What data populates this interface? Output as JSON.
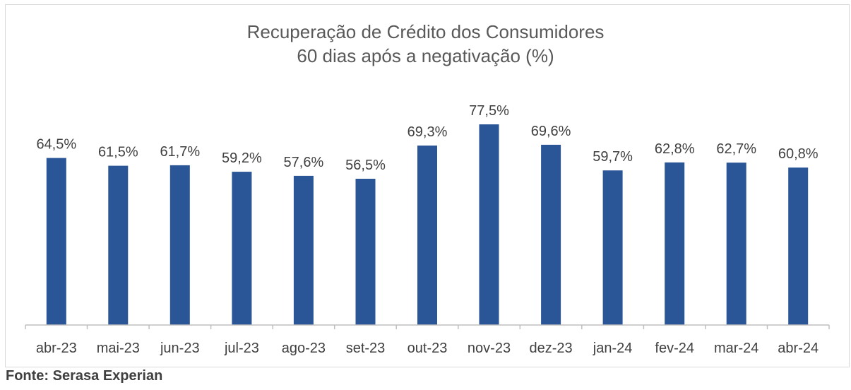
{
  "chart_data": {
    "type": "bar",
    "title": "Recuperação de Crédito dos Consumidores",
    "subtitle": "60 dias após a negativação (%)",
    "categories": [
      "abr-23",
      "mai-23",
      "jun-23",
      "jul-23",
      "ago-23",
      "set-23",
      "out-23",
      "nov-23",
      "dez-23",
      "jan-24",
      "fev-24",
      "mar-24",
      "abr-24"
    ],
    "values": [
      64.5,
      61.5,
      61.7,
      59.2,
      57.6,
      56.5,
      69.3,
      77.5,
      69.6,
      59.7,
      62.8,
      62.7,
      60.8
    ],
    "data_labels": [
      "64,5%",
      "61,5%",
      "61,7%",
      "59,2%",
      "57,6%",
      "56,5%",
      "69,3%",
      "77,5%",
      "69,6%",
      "59,7%",
      "62,8%",
      "62,7%",
      "60,8%"
    ],
    "ylim": [
      0,
      77.5
    ],
    "bar_color": "#2a5597",
    "grid": false,
    "legend": "none"
  },
  "source": "Fonte: Serasa Experian"
}
